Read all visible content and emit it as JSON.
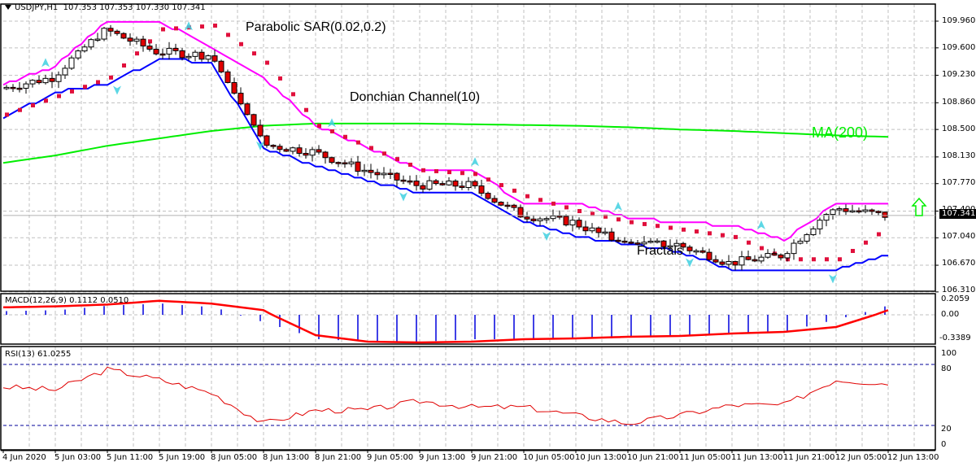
{
  "header": {
    "symbol": "USDJPY,H1",
    "ohlc": "107.353 107.353 107.330 107.341"
  },
  "annotations": {
    "sar": "Parabolic SAR(0.02,0.2)",
    "donchian": "Donchian Channel(10)",
    "ma": "MA(200)",
    "fractals": "Fractals"
  },
  "macd_panel": {
    "label": "MACD(12,26,9) 0.1112 0.0510",
    "ticks": [
      "0.2059",
      "0.00",
      "-0.3389"
    ]
  },
  "rsi_panel": {
    "label": "RSI(13) 61.0255",
    "ticks": [
      "100",
      "80",
      "20",
      "0"
    ]
  },
  "price_axis": {
    "ticks": [
      "109.960",
      "109.600",
      "109.230",
      "108.860",
      "108.500",
      "108.130",
      "107.770",
      "107.400",
      "107.040",
      "106.670",
      "106.310"
    ],
    "current_price": "107.341"
  },
  "time_axis": {
    "labels": [
      "4 Jun 2020",
      "5 Jun 03:00",
      "5 Jun 11:00",
      "5 Jun 19:00",
      "8 Jun 05:00",
      "8 Jun 13:00",
      "8 Jun 21:00",
      "9 Jun 05:00",
      "9 Jun 13:00",
      "9 Jun 21:00",
      "10 Jun 05:00",
      "10 Jun 13:00",
      "10 Jun 21:00",
      "11 Jun 05:00",
      "11 Jun 13:00",
      "11 Jun 21:00",
      "12 Jun 05:00",
      "12 Jun 13:00"
    ]
  },
  "colors": {
    "bull_body": "#ffffff",
    "bear_body": "#e00000",
    "candle_outline": "#000000",
    "donchian_upper": "#ff00ff",
    "donchian_lower": "#0000ff",
    "sar": "#e0103c",
    "ma200": "#00ee00",
    "fractal": "#40d0e0",
    "macd_hist": "#0000dd",
    "macd_signal": "#ff0000",
    "rsi_line": "#e00000",
    "level_line": "#000099",
    "grid": "#c0c0c0",
    "signal_arrow": "#00ee00"
  },
  "signal": {
    "direction": "up"
  },
  "chart_data": [
    {
      "type": "candlestick",
      "title": "USDJPY,H1",
      "xlabel": "",
      "ylabel": "Price",
      "ylim": [
        106.31,
        110.15
      ],
      "x": [
        "4 Jun 2020",
        "5 Jun 03:00",
        "5 Jun 11:00",
        "5 Jun 19:00",
        "8 Jun 05:00",
        "8 Jun 13:00",
        "8 Jun 21:00",
        "9 Jun 05:00",
        "9 Jun 13:00",
        "9 Jun 21:00",
        "10 Jun 05:00",
        "10 Jun 13:00",
        "10 Jun 21:00",
        "11 Jun 05:00",
        "11 Jun 13:00",
        "11 Jun 21:00",
        "12 Jun 05:00",
        "12 Jun 13:00"
      ],
      "close_approx": [
        109.05,
        109.2,
        109.85,
        109.55,
        109.5,
        108.3,
        108.2,
        107.95,
        107.75,
        107.75,
        107.35,
        107.25,
        106.95,
        106.95,
        106.7,
        106.8,
        107.45,
        107.341
      ],
      "series": [
        {
          "name": "MA(200)",
          "values": [
            108.05,
            108.15,
            108.28,
            108.38,
            108.48,
            108.55,
            108.58,
            108.58,
            108.58,
            108.57,
            108.56,
            108.55,
            108.53,
            108.5,
            108.48,
            108.45,
            108.42,
            108.4
          ]
        },
        {
          "name": "Donchian upper",
          "values": [
            109.1,
            109.35,
            109.96,
            109.96,
            109.6,
            109.2,
            108.55,
            108.25,
            107.95,
            107.95,
            107.5,
            107.5,
            107.3,
            107.25,
            107.2,
            107.0,
            107.5,
            107.5
          ]
        },
        {
          "name": "Donchian lower",
          "values": [
            108.65,
            109.0,
            109.1,
            109.45,
            109.4,
            108.25,
            108.0,
            107.8,
            107.65,
            107.65,
            107.25,
            107.05,
            106.95,
            106.85,
            106.6,
            106.6,
            106.6,
            106.8
          ]
        },
        {
          "name": "Parabolic SAR",
          "values": [
            108.7,
            108.95,
            109.2,
            109.85,
            109.9,
            109.4,
            108.55,
            108.25,
            107.95,
            107.9,
            107.6,
            107.4,
            107.25,
            107.15,
            107.05,
            106.75,
            106.75,
            107.2
          ]
        }
      ],
      "last_price": 107.341,
      "price_ticks": [
        109.96,
        109.6,
        109.23,
        108.86,
        108.5,
        108.13,
        107.77,
        107.4,
        107.04,
        106.67,
        106.31
      ]
    },
    {
      "type": "bar",
      "title": "MACD(12,26,9) 0.1112 0.0510",
      "ylim": [
        -0.3389,
        0.2059
      ],
      "series": [
        {
          "name": "MACD histogram",
          "values": [
            0.04,
            0.05,
            0.1,
            0.12,
            0.08,
            -0.1,
            -0.3,
            -0.33,
            -0.33,
            -0.3,
            -0.3,
            -0.3,
            -0.28,
            -0.25,
            -0.22,
            -0.2,
            -0.05,
            0.11
          ]
        },
        {
          "name": "Signal",
          "values": [
            0.08,
            0.09,
            0.11,
            0.15,
            0.12,
            0.05,
            -0.25,
            -0.33,
            -0.34,
            -0.33,
            -0.3,
            -0.29,
            -0.27,
            -0.26,
            -0.23,
            -0.21,
            -0.15,
            0.05
          ]
        }
      ],
      "last_values": {
        "macd": 0.1112,
        "signal": 0.051
      }
    },
    {
      "type": "line",
      "title": "RSI(13) 61.0255",
      "ylim": [
        0,
        100
      ],
      "levels": [
        20,
        80
      ],
      "series": [
        {
          "name": "RSI(13)",
          "values": [
            58,
            55,
            75,
            65,
            52,
            22,
            35,
            35,
            44,
            38,
            38,
            30,
            22,
            30,
            40,
            40,
            65,
            61.0255
          ]
        }
      ],
      "last_value": 61.0255
    }
  ]
}
